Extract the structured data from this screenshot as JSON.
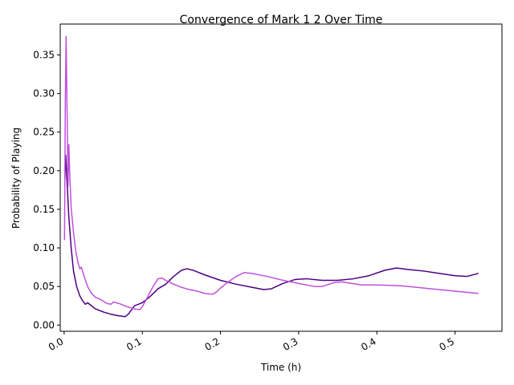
{
  "chart_data": {
    "type": "line",
    "title": "Convergence of Mark 1 2 Over Time",
    "xlabel": "Time (h)",
    "ylabel": "Probability of Playing",
    "xlim": [
      -0.005,
      0.56
    ],
    "ylim": [
      -0.008,
      0.39
    ],
    "grid": false,
    "legend": "none",
    "x_ticks": [
      0.0,
      0.1,
      0.2,
      0.3,
      0.4,
      0.5
    ],
    "x_tick_labels": [
      "0.0",
      "0.1",
      "0.2",
      "0.3",
      "0.4",
      "0.5"
    ],
    "y_ticks": [
      0.0,
      0.05,
      0.1,
      0.15,
      0.2,
      0.25,
      0.3,
      0.35
    ],
    "y_tick_labels": [
      "0.00",
      "0.05",
      "0.10",
      "0.15",
      "0.20",
      "0.25",
      "0.30",
      "0.35"
    ],
    "series": [
      {
        "color": "#4b0082",
        "points": [
          [
            0.001,
            0.19
          ],
          [
            0.002,
            0.22
          ],
          [
            0.004,
            0.18
          ],
          [
            0.006,
            0.14
          ],
          [
            0.009,
            0.1
          ],
          [
            0.012,
            0.07
          ],
          [
            0.016,
            0.05
          ],
          [
            0.02,
            0.038
          ],
          [
            0.024,
            0.031
          ],
          [
            0.027,
            0.027
          ],
          [
            0.03,
            0.029
          ],
          [
            0.035,
            0.025
          ],
          [
            0.04,
            0.021
          ],
          [
            0.05,
            0.017
          ],
          [
            0.06,
            0.014
          ],
          [
            0.07,
            0.012
          ],
          [
            0.078,
            0.011
          ],
          [
            0.082,
            0.014
          ],
          [
            0.09,
            0.025
          ],
          [
            0.1,
            0.029
          ],
          [
            0.11,
            0.037
          ],
          [
            0.12,
            0.047
          ],
          [
            0.13,
            0.053
          ],
          [
            0.14,
            0.063
          ],
          [
            0.15,
            0.071
          ],
          [
            0.157,
            0.073
          ],
          [
            0.165,
            0.071
          ],
          [
            0.18,
            0.065
          ],
          [
            0.2,
            0.058
          ],
          [
            0.22,
            0.053
          ],
          [
            0.24,
            0.049
          ],
          [
            0.255,
            0.046
          ],
          [
            0.265,
            0.047
          ],
          [
            0.28,
            0.054
          ],
          [
            0.295,
            0.059
          ],
          [
            0.31,
            0.06
          ],
          [
            0.33,
            0.058
          ],
          [
            0.35,
            0.058
          ],
          [
            0.37,
            0.06
          ],
          [
            0.39,
            0.064
          ],
          [
            0.41,
            0.071
          ],
          [
            0.425,
            0.074
          ],
          [
            0.44,
            0.072
          ],
          [
            0.46,
            0.07
          ],
          [
            0.48,
            0.067
          ],
          [
            0.5,
            0.064
          ],
          [
            0.515,
            0.063
          ],
          [
            0.53,
            0.067
          ]
        ]
      },
      {
        "color": "#c050dc",
        "points": [
          [
            0.0005,
            0.11
          ],
          [
            0.0015,
            0.29
          ],
          [
            0.0025,
            0.374
          ],
          [
            0.004,
            0.26
          ],
          [
            0.005,
            0.18
          ],
          [
            0.006,
            0.234
          ],
          [
            0.007,
            0.2
          ],
          [
            0.009,
            0.152
          ],
          [
            0.012,
            0.12
          ],
          [
            0.015,
            0.095
          ],
          [
            0.018,
            0.08
          ],
          [
            0.02,
            0.073
          ],
          [
            0.022,
            0.075
          ],
          [
            0.026,
            0.062
          ],
          [
            0.03,
            0.05
          ],
          [
            0.035,
            0.041
          ],
          [
            0.04,
            0.036
          ],
          [
            0.045,
            0.034
          ],
          [
            0.05,
            0.031
          ],
          [
            0.055,
            0.028
          ],
          [
            0.06,
            0.027
          ],
          [
            0.063,
            0.03
          ],
          [
            0.07,
            0.028
          ],
          [
            0.08,
            0.024
          ],
          [
            0.09,
            0.021
          ],
          [
            0.097,
            0.02
          ],
          [
            0.1,
            0.024
          ],
          [
            0.105,
            0.033
          ],
          [
            0.11,
            0.043
          ],
          [
            0.115,
            0.052
          ],
          [
            0.12,
            0.06
          ],
          [
            0.125,
            0.061
          ],
          [
            0.13,
            0.058
          ],
          [
            0.14,
            0.053
          ],
          [
            0.15,
            0.049
          ],
          [
            0.16,
            0.046
          ],
          [
            0.17,
            0.044
          ],
          [
            0.18,
            0.041
          ],
          [
            0.19,
            0.04
          ],
          [
            0.195,
            0.043
          ],
          [
            0.2,
            0.048
          ],
          [
            0.21,
            0.056
          ],
          [
            0.22,
            0.063
          ],
          [
            0.23,
            0.068
          ],
          [
            0.24,
            0.067
          ],
          [
            0.26,
            0.063
          ],
          [
            0.28,
            0.058
          ],
          [
            0.3,
            0.054
          ],
          [
            0.32,
            0.05
          ],
          [
            0.33,
            0.05
          ],
          [
            0.345,
            0.055
          ],
          [
            0.355,
            0.056
          ],
          [
            0.38,
            0.052
          ],
          [
            0.4,
            0.052
          ],
          [
            0.43,
            0.051
          ],
          [
            0.47,
            0.047
          ],
          [
            0.5,
            0.044
          ],
          [
            0.53,
            0.041
          ]
        ]
      }
    ]
  }
}
